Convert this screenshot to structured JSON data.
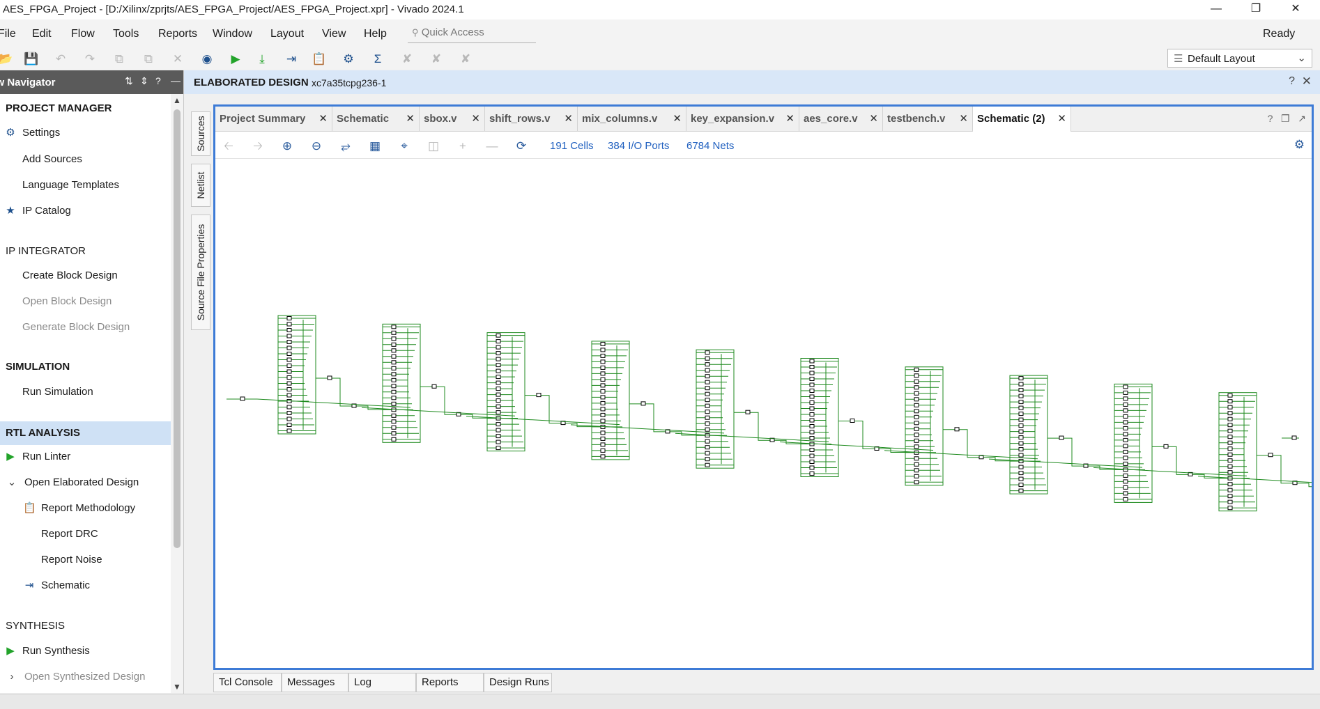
{
  "window": {
    "title": "AES_FPGA_Project - [D:/Xilinx/zprjts/AES_FPGA_Project/AES_FPGA_Project.xpr] - Vivado 2024.1",
    "minimize_icon": "minimize-icon",
    "restore_icon": "restore-icon",
    "close_icon": "close-icon"
  },
  "menubar": {
    "items": [
      "File",
      "Edit",
      "Flow",
      "Tools",
      "Reports",
      "Window",
      "Layout",
      "View",
      "Help"
    ],
    "quick_access_placeholder": "Quick Access",
    "status": "Ready"
  },
  "toolbar": {
    "layout_selected": "Default Layout"
  },
  "navigator": {
    "title": "Flow Navigator",
    "sections": [
      {
        "label": "PROJECT MANAGER",
        "items": [
          {
            "label": "Settings",
            "icon": "gear-icon"
          },
          {
            "label": "Add Sources"
          },
          {
            "label": "Language Templates"
          },
          {
            "label": "IP Catalog",
            "icon": "ip-catalog-icon"
          }
        ]
      },
      {
        "label": "IP INTEGRATOR",
        "items": [
          {
            "label": "Create Block Design"
          },
          {
            "label": "Open Block Design"
          },
          {
            "label": "Generate Block Design"
          }
        ]
      },
      {
        "label": "SIMULATION",
        "items": [
          {
            "label": "Run Simulation"
          }
        ]
      },
      {
        "label": "RTL ANALYSIS",
        "items": [
          {
            "label": "Run Linter",
            "icon": "run-icon"
          },
          {
            "label": "Open Elaborated Design",
            "icon": "chevron-down-icon"
          },
          {
            "label": "Report Methodology",
            "icon": "report-methodology-icon"
          },
          {
            "label": "Report DRC"
          },
          {
            "label": "Report Noise"
          },
          {
            "label": "Schematic",
            "icon": "schematic-icon"
          }
        ]
      },
      {
        "label": "SYNTHESIS",
        "items": [
          {
            "label": "Run Synthesis",
            "icon": "run-icon"
          },
          {
            "label": "Open Synthesized Design",
            "icon": "chevron-right-icon"
          }
        ]
      }
    ]
  },
  "editor": {
    "header_title": "ELABORATED DESIGN",
    "header_part": "xc7a35tcpg236-1",
    "side_tabs": [
      "Sources",
      "Netlist",
      "Source File Properties"
    ],
    "tabs": [
      "Project Summary",
      "Schematic",
      "sbox.v",
      "shift_rows.v",
      "mix_columns.v",
      "key_expansion.v",
      "aes_core.v",
      "testbench.v",
      "Schematic (2)"
    ],
    "active_tab": "Schematic (2)",
    "stats": {
      "cells": "191 Cells",
      "ports": "384 I/O Ports",
      "nets": "6784 Nets"
    },
    "schematic": {
      "block_count": 10,
      "wire_color": "#1e8a1e"
    }
  },
  "bottom_tabs": [
    "Tcl Console",
    "Messages",
    "Log",
    "Reports",
    "Design Runs"
  ]
}
